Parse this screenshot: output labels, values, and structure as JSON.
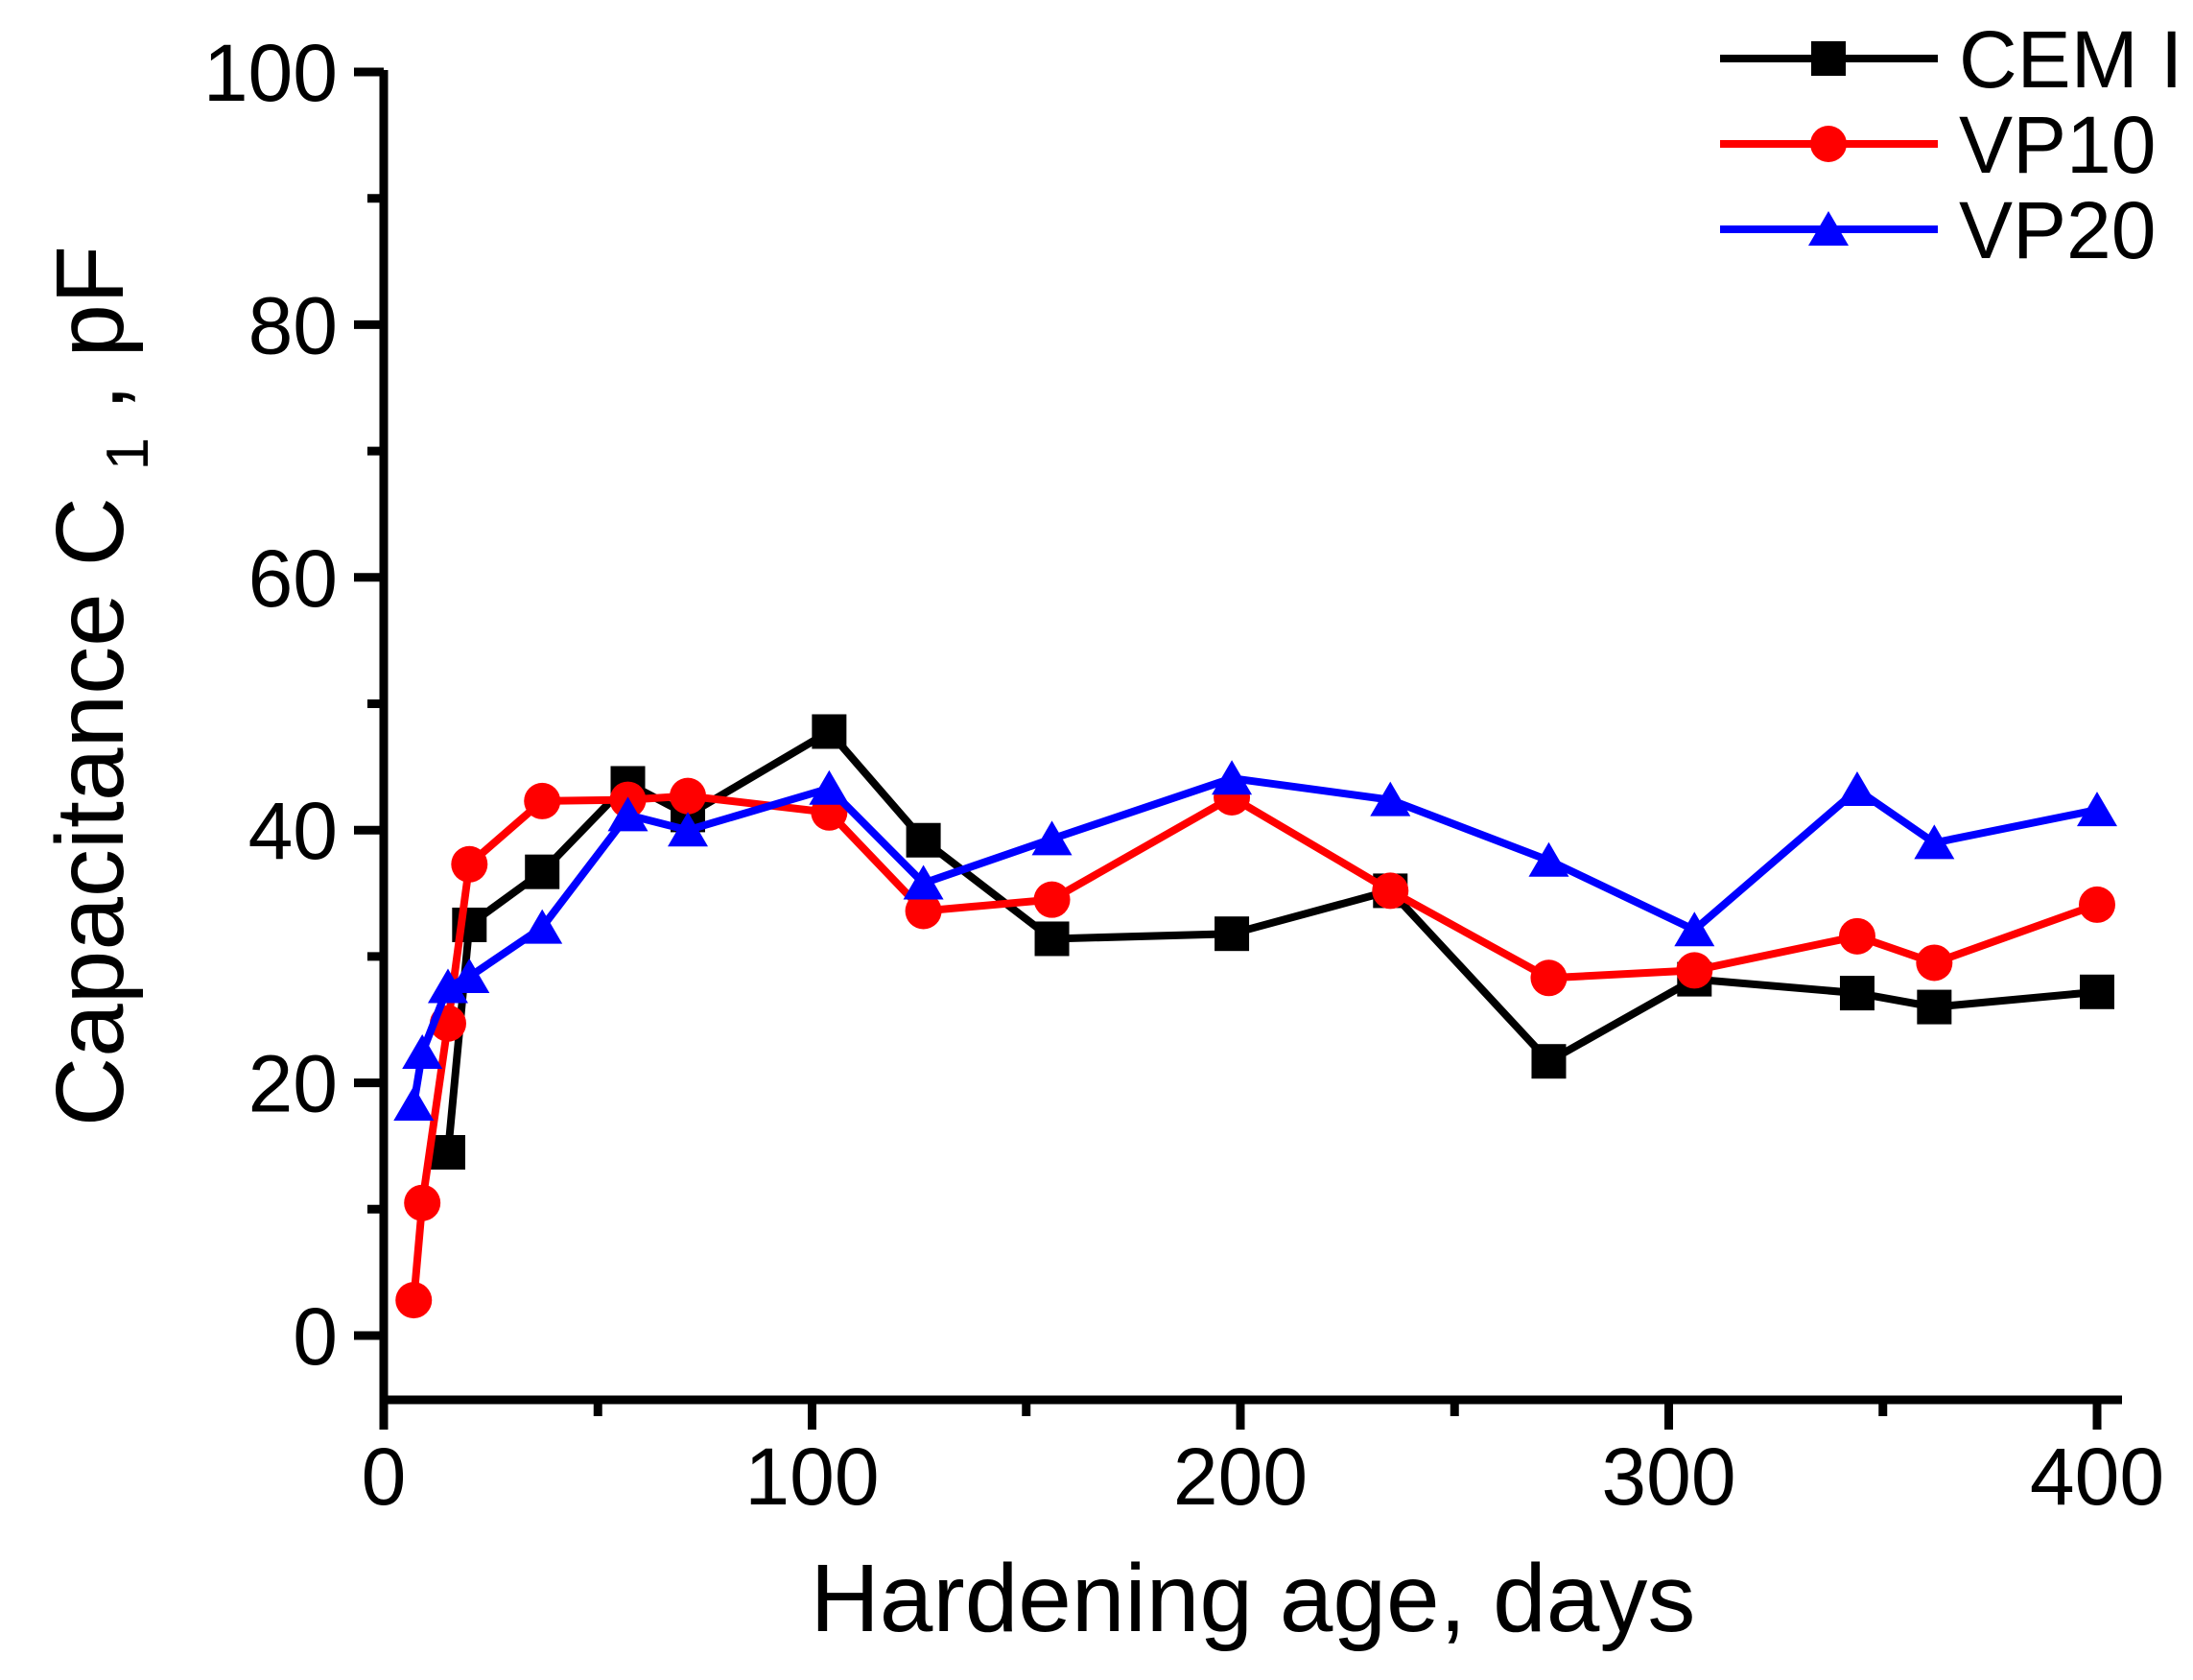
{
  "figure": {
    "background": "#ffffff",
    "axis_color": "#000000"
  },
  "chart_data": {
    "type": "line",
    "title": "",
    "xlabel": "Hardening age, days",
    "ylabel": "Capacitance C1, pF",
    "ylabel_parts": {
      "main": "Capacitance C",
      "sub": "1",
      "suffix": ", pF"
    },
    "xlim": [
      0,
      406
    ],
    "ylim": [
      -5,
      100
    ],
    "x_major_ticks": [
      0,
      100,
      200,
      300,
      400
    ],
    "x_minor_ticks": [
      50,
      150,
      250,
      350
    ],
    "y_major_ticks": [
      0,
      20,
      40,
      60,
      80,
      100
    ],
    "y_minor_ticks": [
      10,
      30,
      50,
      70,
      90
    ],
    "grid": false,
    "legend_position": "top-right",
    "series": [
      {
        "name": "CEM I",
        "color": "#000000",
        "marker": "square",
        "points": [
          [
            15,
            14.5
          ],
          [
            20,
            32.5
          ],
          [
            37,
            36.7
          ],
          [
            57,
            43.7
          ],
          [
            71,
            41.2
          ],
          [
            104,
            47.8
          ],
          [
            126,
            39.2
          ],
          [
            156,
            31.4
          ],
          [
            198,
            31.8
          ],
          [
            235,
            35.2
          ],
          [
            272,
            21.7
          ],
          [
            306,
            28.2
          ],
          [
            344,
            27.1
          ],
          [
            362,
            26.0
          ],
          [
            400,
            27.2
          ]
        ]
      },
      {
        "name": "VP10",
        "color": "#ff0000",
        "marker": "circle",
        "points": [
          [
            7,
            2.8
          ],
          [
            9,
            10.5
          ],
          [
            15,
            24.7
          ],
          [
            20,
            37.3
          ],
          [
            37,
            42.3
          ],
          [
            57,
            42.4
          ],
          [
            71,
            42.7
          ],
          [
            104,
            41.4
          ],
          [
            126,
            33.6
          ],
          [
            156,
            34.5
          ],
          [
            198,
            42.6
          ],
          [
            235,
            35.2
          ],
          [
            272,
            28.3
          ],
          [
            306,
            28.9
          ],
          [
            344,
            31.6
          ],
          [
            362,
            29.5
          ],
          [
            400,
            34.1
          ]
        ]
      },
      {
        "name": "VP20",
        "color": "#0000ff",
        "marker": "triangle",
        "points": [
          [
            7,
            18.3
          ],
          [
            9,
            22.4
          ],
          [
            15,
            27.6
          ],
          [
            20,
            28.4
          ],
          [
            37,
            32.3
          ],
          [
            57,
            41.2
          ],
          [
            71,
            40.0
          ],
          [
            104,
            43.3
          ],
          [
            126,
            35.8
          ],
          [
            156,
            39.3
          ],
          [
            198,
            44.1
          ],
          [
            235,
            42.4
          ],
          [
            272,
            37.6
          ],
          [
            306,
            32.1
          ],
          [
            344,
            43.2
          ],
          [
            362,
            39.0
          ],
          [
            400,
            41.6
          ]
        ]
      }
    ]
  }
}
